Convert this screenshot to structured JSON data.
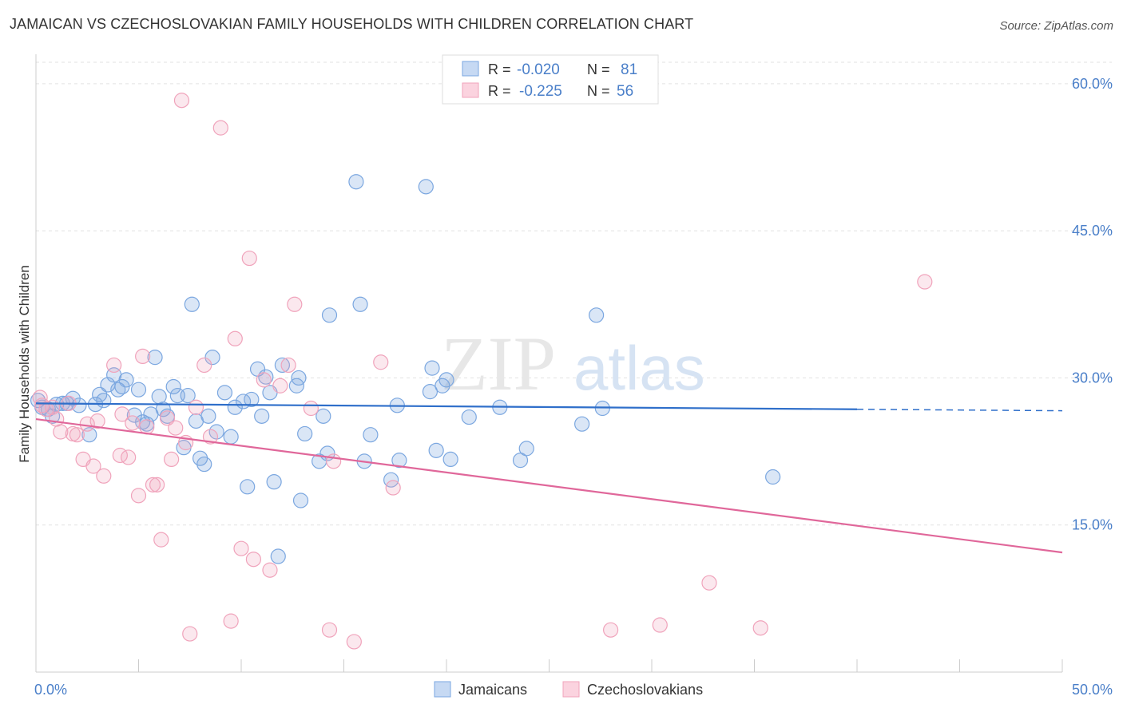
{
  "title": "JAMAICAN VS CZECHOSLOVAKIAN FAMILY HOUSEHOLDS WITH CHILDREN CORRELATION CHART",
  "source": "Source: ZipAtlas.com",
  "watermark": {
    "part1": "ZIP",
    "part2": "atlas"
  },
  "chart_data": {
    "type": "scatter",
    "title": "JAMAICAN VS CZECHOSLOVAKIAN FAMILY HOUSEHOLDS WITH CHILDREN CORRELATION CHART",
    "xlabel": "",
    "ylabel": "Family Households with Children",
    "xlim": [
      0,
      50
    ],
    "ylim": [
      0,
      63
    ],
    "x_tick_labels": {
      "min": "0.0%",
      "max": "50.0%"
    },
    "y_ticks": [
      15,
      30,
      45,
      60
    ],
    "y_tick_labels": [
      "15.0%",
      "30.0%",
      "45.0%",
      "60.0%"
    ],
    "legend": {
      "entries": [
        {
          "r_label": "R =",
          "r_value": "-0.020",
          "n_label": "N =",
          "n_value": "81"
        },
        {
          "r_label": "R =",
          "r_value": "-0.225",
          "n_label": "N =",
          "n_value": "56"
        }
      ]
    },
    "series": [
      {
        "name": "Jamaicans",
        "color": "#7ba7e0",
        "line_color": "#2f6fca",
        "trend": {
          "x0": 0,
          "y0": 27.4,
          "x1": 40,
          "y1": 26.8,
          "dash_to": 50
        },
        "points": [
          [
            0.1,
            27.7
          ],
          [
            0.3,
            27.0
          ],
          [
            0.6,
            26.8
          ],
          [
            0.8,
            26.1
          ],
          [
            1.0,
            27.3
          ],
          [
            1.3,
            27.4
          ],
          [
            1.5,
            27.4
          ],
          [
            1.8,
            27.9
          ],
          [
            2.1,
            27.2
          ],
          [
            2.6,
            24.2
          ],
          [
            2.9,
            27.3
          ],
          [
            3.1,
            28.3
          ],
          [
            3.3,
            27.7
          ],
          [
            3.5,
            29.3
          ],
          [
            3.8,
            30.3
          ],
          [
            4.0,
            28.8
          ],
          [
            4.2,
            29.1
          ],
          [
            4.4,
            29.8
          ],
          [
            4.8,
            26.2
          ],
          [
            5.0,
            28.8
          ],
          [
            5.2,
            25.5
          ],
          [
            5.4,
            25.3
          ],
          [
            5.6,
            26.3
          ],
          [
            5.8,
            32.1
          ],
          [
            6.0,
            28.1
          ],
          [
            6.2,
            26.8
          ],
          [
            6.4,
            26.1
          ],
          [
            6.7,
            29.1
          ],
          [
            6.9,
            28.2
          ],
          [
            7.2,
            22.9
          ],
          [
            7.4,
            28.2
          ],
          [
            7.6,
            37.5
          ],
          [
            7.8,
            25.6
          ],
          [
            8.0,
            21.8
          ],
          [
            8.2,
            21.2
          ],
          [
            8.4,
            26.1
          ],
          [
            8.6,
            32.1
          ],
          [
            8.8,
            24.5
          ],
          [
            9.2,
            28.5
          ],
          [
            9.5,
            24.0
          ],
          [
            9.7,
            27.0
          ],
          [
            10.1,
            27.6
          ],
          [
            10.3,
            18.9
          ],
          [
            10.5,
            27.8
          ],
          [
            10.8,
            30.9
          ],
          [
            11.0,
            26.1
          ],
          [
            11.2,
            30.1
          ],
          [
            11.4,
            28.5
          ],
          [
            11.6,
            19.4
          ],
          [
            11.8,
            11.8
          ],
          [
            12.0,
            31.3
          ],
          [
            12.7,
            29.2
          ],
          [
            12.9,
            17.5
          ],
          [
            13.1,
            24.3
          ],
          [
            13.8,
            21.5
          ],
          [
            14.0,
            26.1
          ],
          [
            14.2,
            22.3
          ],
          [
            14.3,
            36.4
          ],
          [
            15.6,
            50.0
          ],
          [
            15.8,
            37.5
          ],
          [
            16.3,
            24.2
          ],
          [
            17.3,
            19.6
          ],
          [
            17.6,
            27.2
          ],
          [
            17.7,
            21.6
          ],
          [
            19.0,
            49.5
          ],
          [
            19.2,
            28.6
          ],
          [
            19.3,
            31.0
          ],
          [
            19.5,
            22.6
          ],
          [
            19.8,
            29.2
          ],
          [
            20.0,
            29.8
          ],
          [
            20.2,
            21.7
          ],
          [
            21.1,
            26.0
          ],
          [
            22.6,
            27.0
          ],
          [
            23.6,
            21.6
          ],
          [
            23.9,
            22.8
          ],
          [
            26.6,
            25.3
          ],
          [
            27.3,
            36.4
          ],
          [
            27.6,
            26.9
          ],
          [
            35.9,
            19.9
          ],
          [
            16.0,
            21.5
          ],
          [
            12.8,
            30.0
          ]
        ]
      },
      {
        "name": "Czechoslovakians",
        "color": "#f0a3bb",
        "line_color": "#e0679a",
        "trend": {
          "x0": 0,
          "y0": 25.8,
          "x1": 50,
          "y1": 12.2
        },
        "points": [
          [
            0.3,
            27.2
          ],
          [
            0.5,
            26.8
          ],
          [
            0.8,
            27.0
          ],
          [
            1.0,
            25.8
          ],
          [
            1.2,
            24.5
          ],
          [
            1.6,
            27.4
          ],
          [
            1.8,
            24.3
          ],
          [
            2.0,
            24.2
          ],
          [
            2.3,
            21.7
          ],
          [
            2.5,
            25.3
          ],
          [
            2.8,
            21.0
          ],
          [
            3.0,
            25.6
          ],
          [
            3.3,
            20.0
          ],
          [
            3.8,
            31.3
          ],
          [
            4.1,
            22.1
          ],
          [
            4.2,
            26.3
          ],
          [
            4.5,
            21.9
          ],
          [
            4.7,
            25.4
          ],
          [
            5.0,
            18.0
          ],
          [
            5.2,
            32.2
          ],
          [
            5.4,
            25.0
          ],
          [
            5.7,
            19.1
          ],
          [
            5.9,
            19.1
          ],
          [
            6.1,
            13.5
          ],
          [
            6.4,
            25.9
          ],
          [
            6.6,
            21.7
          ],
          [
            6.8,
            24.9
          ],
          [
            7.1,
            58.3
          ],
          [
            7.3,
            23.4
          ],
          [
            7.5,
            3.9
          ],
          [
            7.8,
            27.0
          ],
          [
            8.2,
            31.3
          ],
          [
            8.5,
            24.0
          ],
          [
            9.0,
            55.5
          ],
          [
            9.5,
            5.2
          ],
          [
            9.7,
            34.0
          ],
          [
            10.0,
            12.6
          ],
          [
            10.4,
            42.2
          ],
          [
            10.6,
            11.5
          ],
          [
            11.1,
            29.8
          ],
          [
            11.4,
            10.4
          ],
          [
            11.9,
            29.2
          ],
          [
            12.3,
            31.3
          ],
          [
            12.6,
            37.5
          ],
          [
            13.4,
            26.9
          ],
          [
            14.3,
            4.3
          ],
          [
            14.5,
            21.5
          ],
          [
            15.5,
            3.1
          ],
          [
            16.8,
            31.6
          ],
          [
            17.4,
            18.8
          ],
          [
            28.0,
            4.3
          ],
          [
            30.4,
            4.8
          ],
          [
            32.8,
            9.1
          ],
          [
            35.3,
            4.5
          ],
          [
            43.3,
            39.8
          ],
          [
            0.2,
            28.0
          ]
        ]
      }
    ]
  },
  "bottom_legend": [
    {
      "label": "Jamaicans",
      "color": "#7ba7e0"
    },
    {
      "label": "Czechoslovakians",
      "color": "#f0a3bb"
    }
  ]
}
